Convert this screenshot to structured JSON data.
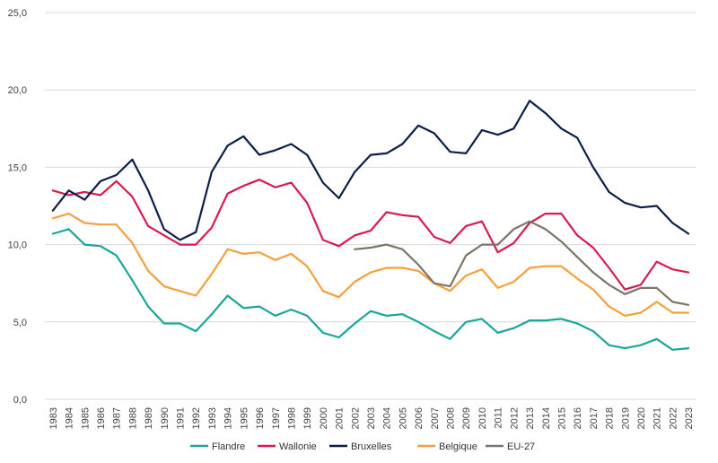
{
  "chart_data": {
    "type": "line",
    "title": "",
    "xlabel": "",
    "ylabel": "",
    "ylim": [
      0,
      25
    ],
    "yticks": [
      "0,0",
      "5,0",
      "10,0",
      "15,0",
      "20,0",
      "25,0"
    ],
    "grid": "horizontal",
    "legend_position": "bottom",
    "x": [
      "1983",
      "1984",
      "1985",
      "1986",
      "1987",
      "1988",
      "1989",
      "1990",
      "1991",
      "1992",
      "1993",
      "1994",
      "1995",
      "1996",
      "1997",
      "1998",
      "1999",
      "2000",
      "2001",
      "2002",
      "2003",
      "2004",
      "2005",
      "2006",
      "2007",
      "2008",
      "2009",
      "2010",
      "2011",
      "2012",
      "2013",
      "2014",
      "2015",
      "2016",
      "2017",
      "2018",
      "2019",
      "2020",
      "2021",
      "2022",
      "2023"
    ],
    "series": [
      {
        "name": "Flandre",
        "color": "#1aa699",
        "values": [
          10.7,
          11.0,
          10.0,
          9.9,
          9.3,
          7.7,
          6.0,
          4.9,
          4.9,
          4.4,
          5.5,
          6.7,
          5.9,
          6.0,
          5.4,
          5.8,
          5.4,
          4.3,
          4.0,
          4.9,
          5.7,
          5.4,
          5.5,
          5.0,
          4.4,
          3.9,
          5.0,
          5.2,
          4.3,
          4.6,
          5.1,
          5.1,
          5.2,
          4.9,
          4.4,
          3.5,
          3.3,
          3.5,
          3.9,
          3.2,
          3.3
        ]
      },
      {
        "name": "Wallonie",
        "color": "#d81b4d",
        "values": [
          13.5,
          13.2,
          13.4,
          13.2,
          14.1,
          13.1,
          11.2,
          10.6,
          10.0,
          10.0,
          11.1,
          13.3,
          13.8,
          14.2,
          13.7,
          14.0,
          12.7,
          10.3,
          9.9,
          10.6,
          10.9,
          12.1,
          11.9,
          11.8,
          10.5,
          10.1,
          11.2,
          11.5,
          9.5,
          10.1,
          11.4,
          12.0,
          12.0,
          10.6,
          9.8,
          8.5,
          7.1,
          7.4,
          8.9,
          8.4,
          8.2
        ]
      },
      {
        "name": "Bruxelles",
        "color": "#0c1e4a",
        "values": [
          12.2,
          13.5,
          12.9,
          14.1,
          14.5,
          15.5,
          13.5,
          11.0,
          10.3,
          10.8,
          14.7,
          16.4,
          17.0,
          15.8,
          16.1,
          16.5,
          15.8,
          14.0,
          13.0,
          14.7,
          15.8,
          15.9,
          16.5,
          17.7,
          17.2,
          16.0,
          15.9,
          17.4,
          17.1,
          17.5,
          19.3,
          18.5,
          17.5,
          16.9,
          15.0,
          13.4,
          12.7,
          12.4,
          12.5,
          11.4,
          10.7
        ]
      },
      {
        "name": "Belgique",
        "color": "#f5a03c",
        "values": [
          11.7,
          12.0,
          11.4,
          11.3,
          11.3,
          10.1,
          8.3,
          7.3,
          7.0,
          6.7,
          8.1,
          9.7,
          9.4,
          9.5,
          9.0,
          9.4,
          8.6,
          7.0,
          6.6,
          7.6,
          8.2,
          8.5,
          8.5,
          8.3,
          7.5,
          7.0,
          8.0,
          8.4,
          7.2,
          7.6,
          8.5,
          8.6,
          8.6,
          7.8,
          7.1,
          6.0,
          5.4,
          5.6,
          6.3,
          5.6,
          5.6
        ]
      },
      {
        "name": "EU-27",
        "color": "#7d7468",
        "values": [
          null,
          null,
          null,
          null,
          null,
          null,
          null,
          null,
          null,
          null,
          null,
          null,
          null,
          null,
          null,
          null,
          null,
          null,
          null,
          9.7,
          9.8,
          10.0,
          9.7,
          8.7,
          7.5,
          7.3,
          9.3,
          10.0,
          10.0,
          11.0,
          11.5,
          11.0,
          10.2,
          9.2,
          8.2,
          7.4,
          6.8,
          7.2,
          7.2,
          6.3,
          6.1
        ]
      }
    ]
  }
}
